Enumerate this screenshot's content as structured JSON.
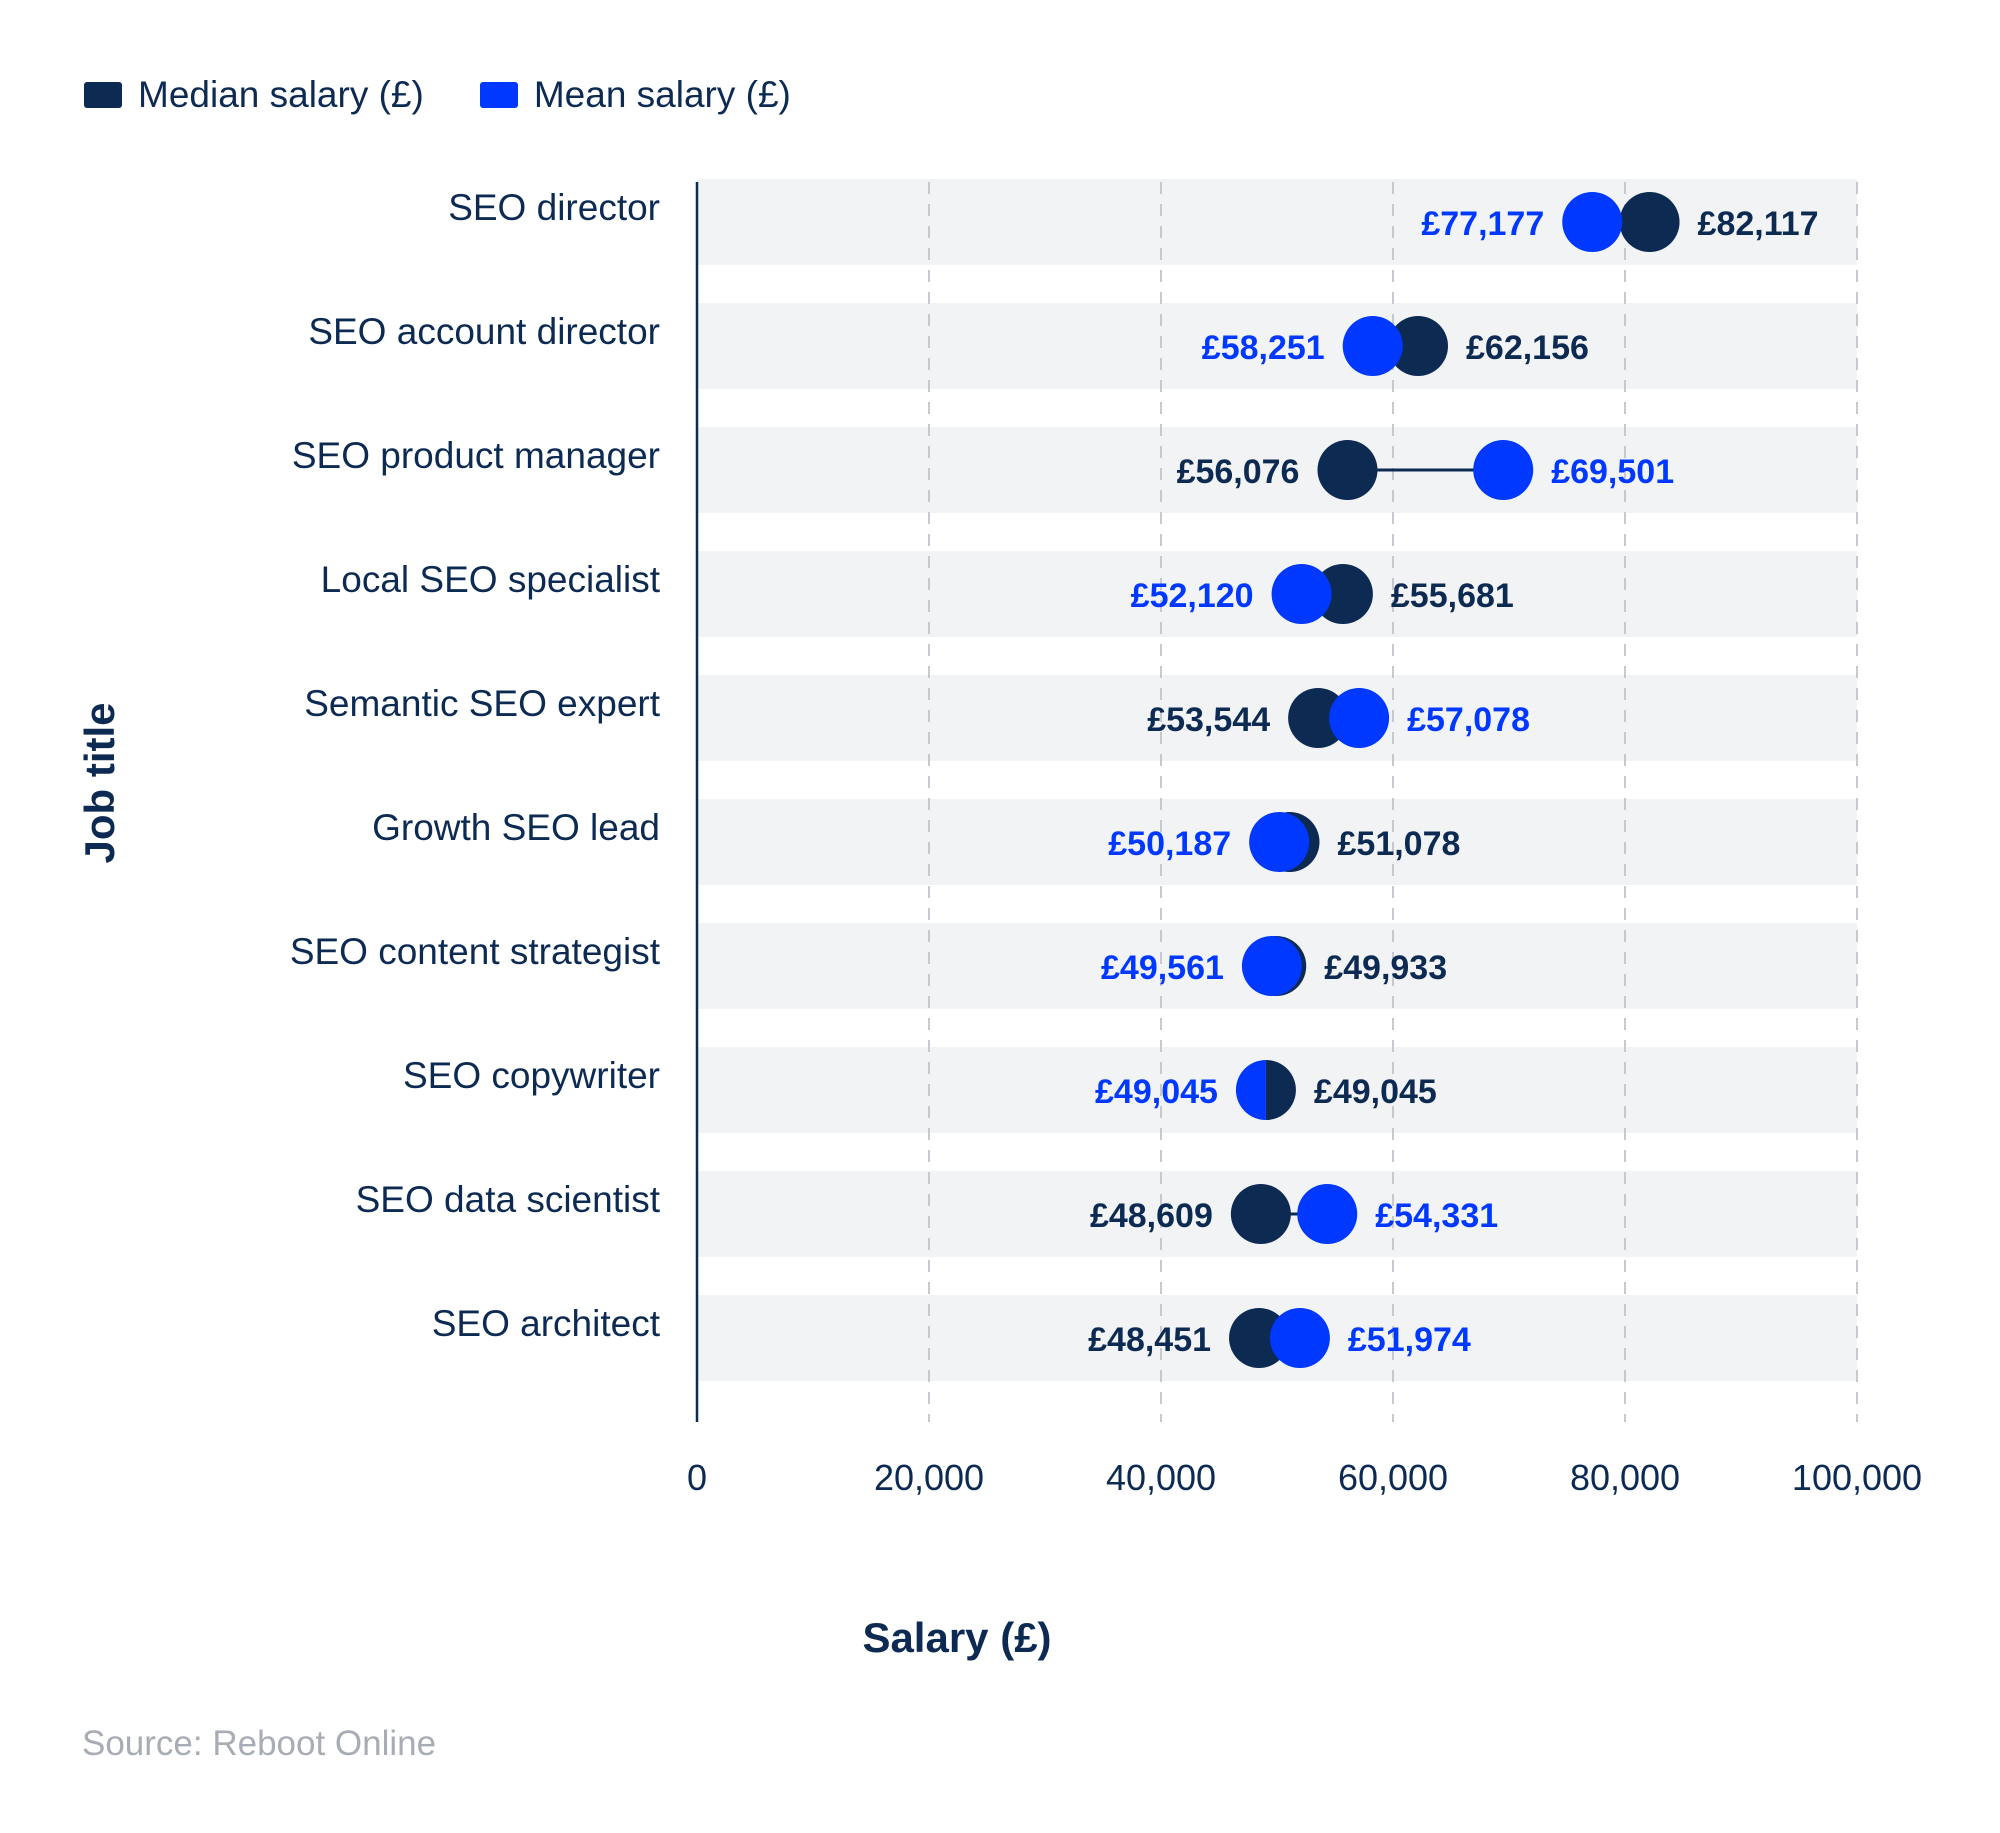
{
  "legend": {
    "median_label": "Median salary (£)",
    "mean_label": "Mean salary (£)"
  },
  "source": "Source: Reboot Online",
  "colors": {
    "median": "#0d2b52",
    "mean": "#0038ff",
    "band": "#f2f3f5",
    "grid": "#c6c9cf",
    "axis": "#0d2b52"
  },
  "chart_data": {
    "type": "scatter",
    "orientation": "horizontal-dumbbell",
    "xlabel": "Salary (£)",
    "ylabel": "Job title",
    "xlim": [
      0,
      100000
    ],
    "xticks": [
      0,
      20000,
      40000,
      60000,
      80000,
      100000
    ],
    "xtick_labels": [
      "0",
      "20,000",
      "40,000",
      "60,000",
      "80,000",
      "100,000"
    ],
    "grid": "vertical-dashed",
    "legend_position": "top-left",
    "categories": [
      "SEO director",
      "SEO account director",
      "SEO product manager",
      "Local SEO specialist",
      "Semantic SEO expert",
      "Growth SEO lead",
      "SEO content strategist",
      "SEO copywriter",
      "SEO data scientist",
      "SEO architect"
    ],
    "series": [
      {
        "name": "Median salary (£)",
        "values": [
          82117,
          62156,
          56076,
          55681,
          53544,
          51078,
          49933,
          49045,
          48609,
          48451
        ],
        "labels": [
          "£82,117",
          "£62,156",
          "£56,076",
          "£55,681",
          "£53,544",
          "£51,078",
          "£49,933",
          "£49,045",
          "£48,609",
          "£48,451"
        ]
      },
      {
        "name": "Mean salary (£)",
        "values": [
          77177,
          58251,
          69501,
          52120,
          57078,
          50187,
          49561,
          49045,
          54331,
          51974
        ],
        "labels": [
          "£77,177",
          "£58,251",
          "£69,501",
          "£52,120",
          "£57,078",
          "£50,187",
          "£49,561",
          "£49,045",
          "£54,331",
          "£51,974"
        ]
      }
    ]
  }
}
